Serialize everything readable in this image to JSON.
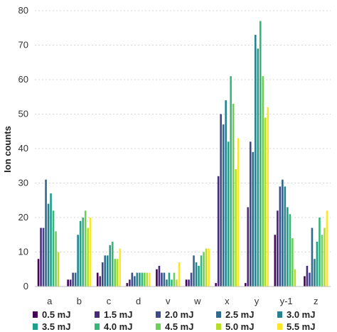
{
  "chart_data": {
    "type": "bar",
    "title": "",
    "xlabel": "",
    "ylabel": "Ion counts",
    "ylim": [
      0,
      80
    ],
    "yticks": [
      0,
      10,
      20,
      30,
      40,
      50,
      60,
      70,
      80
    ],
    "grid": "horizontal dashed",
    "legend_position": "bottom",
    "categories": [
      "a",
      "b",
      "c",
      "d",
      "v",
      "w",
      "x",
      "y",
      "y-1",
      "z"
    ],
    "series": [
      {
        "name": "0.5 mJ",
        "color": "#440154",
        "values": [
          8,
          2,
          4,
          1,
          5,
          2,
          1,
          1,
          15,
          3
        ]
      },
      {
        "name": "1.5 mJ",
        "color": "#482878",
        "values": [
          17,
          2,
          3,
          2,
          6,
          2,
          32,
          23,
          22,
          6
        ]
      },
      {
        "name": "2.0 mJ",
        "color": "#3e4989",
        "values": [
          17,
          4,
          7,
          4,
          4,
          4,
          50,
          42,
          29,
          4
        ]
      },
      {
        "name": "2.5 mJ",
        "color": "#31688e",
        "values": [
          31,
          4,
          9,
          3,
          4,
          9,
          47,
          39,
          31,
          17
        ]
      },
      {
        "name": "3.0 mJ",
        "color": "#26828e",
        "values": [
          24,
          15,
          9,
          4,
          2,
          7,
          54,
          73,
          29,
          8
        ]
      },
      {
        "name": "3.5 mJ",
        "color": "#1f9e89",
        "values": [
          27,
          19,
          12,
          4,
          4,
          6,
          42,
          69,
          23,
          13
        ]
      },
      {
        "name": "4.0 mJ",
        "color": "#35b779",
        "values": [
          22,
          20,
          13,
          4,
          2,
          9,
          61,
          77,
          21,
          20
        ]
      },
      {
        "name": "4.5 mJ",
        "color": "#6ece58",
        "values": [
          16,
          22,
          8,
          4,
          4,
          10,
          53,
          61,
          14,
          15
        ]
      },
      {
        "name": "5.0 mJ",
        "color": "#b5de2b",
        "values": [
          10,
          17,
          8,
          4,
          2,
          11,
          34,
          49,
          5,
          17
        ]
      },
      {
        "name": "5.5 mJ",
        "color": "#fde725",
        "values": [
          0,
          20,
          11,
          4,
          7,
          11,
          43,
          52,
          0,
          22
        ]
      }
    ]
  }
}
